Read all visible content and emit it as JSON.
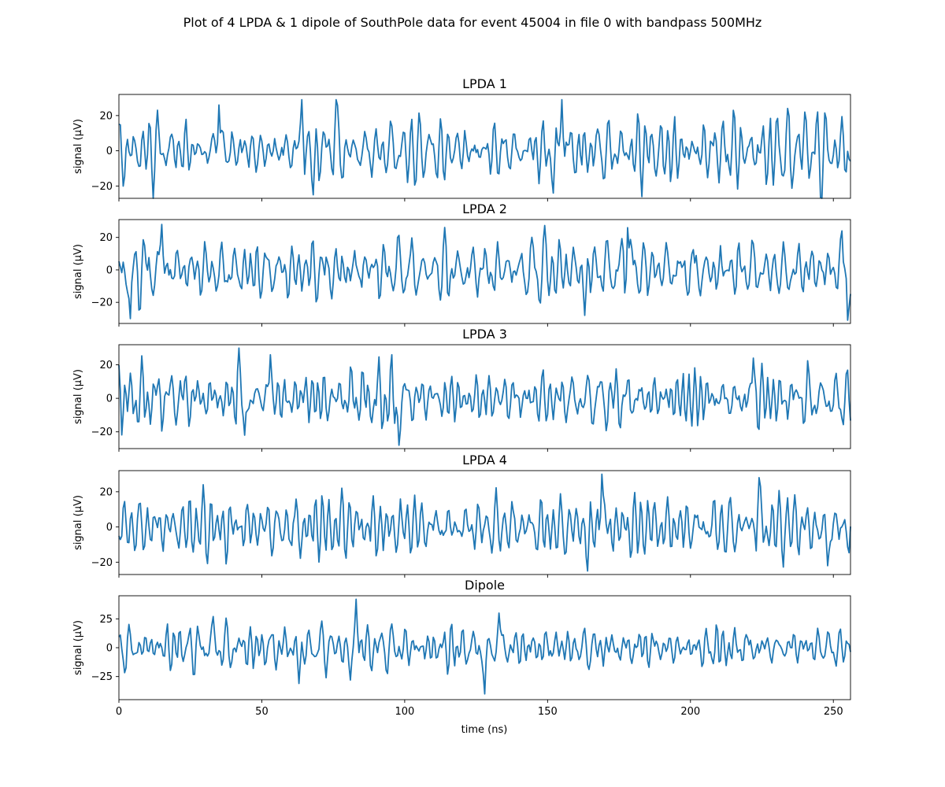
{
  "figure": {
    "suptitle": "Plot of 4 LPDA & 1 dipole of SouthPole data for event 45004 in file 0 with bandpass 500MHz",
    "xlabel": "time (ns)",
    "line_color": "#1f77b4"
  },
  "chart_data": [
    {
      "type": "line",
      "title": "LPDA 1",
      "ylabel": "signal (µV)",
      "xlim": [
        0,
        256
      ],
      "ylim": [
        -27,
        32
      ],
      "xticks": [
        0,
        50,
        100,
        150,
        200,
        250
      ],
      "yticks": [
        -20,
        0,
        20
      ],
      "series": [
        {
          "x_step_ns": 0.5,
          "seed": 101,
          "amplitude": 30,
          "peaks": [
            {
              "x": 35,
              "y": 26
            },
            {
              "x": 64,
              "y": 29
            },
            {
              "x": 68,
              "y": -25
            },
            {
              "x": 76,
              "y": 29
            },
            {
              "x": 155,
              "y": 29
            },
            {
              "x": 152,
              "y": -24
            },
            {
              "x": 240,
              "y": 22
            }
          ]
        }
      ]
    },
    {
      "type": "line",
      "title": "LPDA 2",
      "ylabel": "signal (µV)",
      "xlim": [
        0,
        256
      ],
      "ylim": [
        -33,
        31
      ],
      "xticks": [
        0,
        50,
        100,
        150,
        200,
        250
      ],
      "yticks": [
        -20,
        0,
        20
      ],
      "series": [
        {
          "x_step_ns": 0.5,
          "seed": 202,
          "amplitude": 30,
          "peaks": [
            {
              "x": 15,
              "y": 28
            },
            {
              "x": 4,
              "y": -30
            },
            {
              "x": 163,
              "y": -28
            },
            {
              "x": 178,
              "y": 26
            },
            {
              "x": 255,
              "y": -31
            },
            {
              "x": 253,
              "y": 24
            }
          ]
        }
      ]
    },
    {
      "type": "line",
      "title": "LPDA 3",
      "ylabel": "signal (µV)",
      "xlim": [
        0,
        256
      ],
      "ylim": [
        -30,
        32
      ],
      "xticks": [
        0,
        50,
        100,
        150,
        200,
        250
      ],
      "yticks": [
        -20,
        0,
        20
      ],
      "series": [
        {
          "x_step_ns": 0.5,
          "seed": 303,
          "amplitude": 26,
          "peaks": [
            {
              "x": 42,
              "y": 30
            },
            {
              "x": 44,
              "y": -22
            },
            {
              "x": 53,
              "y": 26
            },
            {
              "x": 98,
              "y": -28
            },
            {
              "x": 222,
              "y": 24
            }
          ]
        }
      ]
    },
    {
      "type": "line",
      "title": "LPDA 4",
      "ylabel": "signal (µV)",
      "xlim": [
        0,
        256
      ],
      "ylim": [
        -27,
        32
      ],
      "xticks": [
        0,
        50,
        100,
        150,
        200,
        250
      ],
      "yticks": [
        -20,
        0,
        20
      ],
      "series": [
        {
          "x_step_ns": 0.5,
          "seed": 404,
          "amplitude": 24,
          "peaks": [
            {
              "x": 164,
              "y": -25
            },
            {
              "x": 169,
              "y": 30
            },
            {
              "x": 224,
              "y": 28
            },
            {
              "x": 248,
              "y": -22
            }
          ]
        }
      ]
    },
    {
      "type": "line",
      "title": "Dipole",
      "ylabel": "signal (µV)",
      "xlim": [
        0,
        256
      ],
      "ylim": [
        -45,
        45
      ],
      "xticks": [
        0,
        50,
        100,
        150,
        200,
        250
      ],
      "yticks": [
        -25,
        0,
        25
      ],
      "series": [
        {
          "x_step_ns": 0.5,
          "seed": 505,
          "amplitude": 26,
          "peaks": [
            {
              "x": 33,
              "y": 27
            },
            {
              "x": 63,
              "y": -31
            },
            {
              "x": 83,
              "y": 42
            },
            {
              "x": 81,
              "y": -28
            },
            {
              "x": 128,
              "y": -40
            },
            {
              "x": 133,
              "y": 30
            }
          ]
        }
      ]
    }
  ]
}
